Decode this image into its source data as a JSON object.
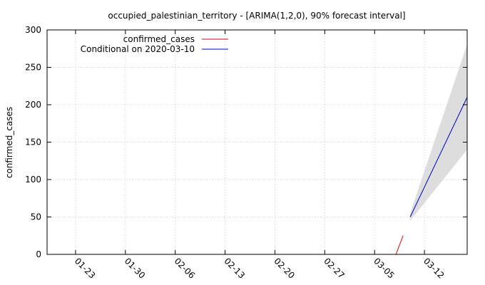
{
  "chart_data": {
    "type": "line",
    "title": "occupied_palestinian_territory -  [ARIMA(1,2,0), 90% forecast interval]",
    "ylabel": "confirmed_cases",
    "xlabel": "",
    "ylim": [
      0,
      300
    ],
    "yticks": [
      0,
      50,
      100,
      150,
      200,
      250,
      300
    ],
    "xlim": [
      "2020-01-19",
      "2020-03-18"
    ],
    "xticks": [
      {
        "date": "2020-01-23",
        "label": "01-23"
      },
      {
        "date": "2020-01-30",
        "label": "01-30"
      },
      {
        "date": "2020-02-06",
        "label": "02-06"
      },
      {
        "date": "2020-02-13",
        "label": "02-13"
      },
      {
        "date": "2020-02-20",
        "label": "02-20"
      },
      {
        "date": "2020-02-27",
        "label": "02-27"
      },
      {
        "date": "2020-03-05",
        "label": "03-05"
      },
      {
        "date": "2020-03-12",
        "label": "03-12"
      }
    ],
    "grid": true,
    "legend_position": "top-left",
    "series": [
      {
        "name": "confirmed_cases",
        "color": "#e00000",
        "points": [
          {
            "x": "2020-03-08",
            "y": 0
          },
          {
            "x": "2020-03-09",
            "y": 25
          }
        ]
      },
      {
        "name": "Conditional on 2020-03-10",
        "color": "#0000cc",
        "points": [
          {
            "x": "2020-03-10",
            "y": 50
          },
          {
            "x": "2020-03-18",
            "y": 210
          }
        ]
      }
    ],
    "interval": {
      "color": "#dddddd",
      "points": [
        {
          "x": "2020-03-10",
          "lower": 45,
          "upper": 55
        },
        {
          "x": "2020-03-18",
          "lower": 140,
          "upper": 281
        }
      ]
    }
  }
}
